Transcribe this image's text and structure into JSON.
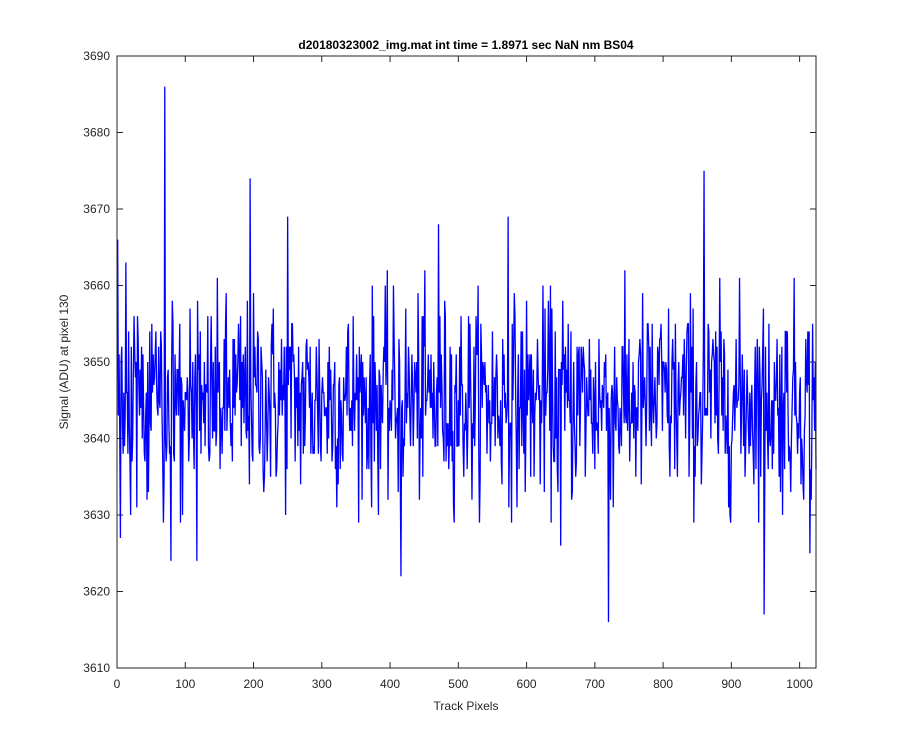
{
  "chart_data": {
    "type": "line",
    "title": "d20180323002_img.mat int time = 1.8971 sec  NaN nm BS04",
    "xlabel": "Track Pixels",
    "ylabel": "Signal (ADU) at pixel 130",
    "xlim": [
      0,
      1024
    ],
    "ylim": [
      3610,
      3690
    ],
    "xticks": [
      0,
      100,
      200,
      300,
      400,
      500,
      600,
      700,
      800,
      900,
      1000
    ],
    "yticks": [
      3610,
      3620,
      3630,
      3640,
      3650,
      3660,
      3670,
      3680,
      3690
    ],
    "grid": false,
    "series": [
      {
        "color": "#0000ff",
        "approximate": true,
        "x_start": 1,
        "x_step": 1,
        "baseline": 3645,
        "spikes": [
          {
            "x": 1,
            "y": 3666
          },
          {
            "x": 5,
            "y": 3627
          },
          {
            "x": 13,
            "y": 3663
          },
          {
            "x": 20,
            "y": 3630
          },
          {
            "x": 70,
            "y": 3686
          },
          {
            "x": 79,
            "y": 3624
          },
          {
            "x": 117,
            "y": 3624
          },
          {
            "x": 195,
            "y": 3674
          },
          {
            "x": 250,
            "y": 3669
          },
          {
            "x": 416,
            "y": 3622
          },
          {
            "x": 471,
            "y": 3668
          },
          {
            "x": 573,
            "y": 3669
          },
          {
            "x": 650,
            "y": 3626
          },
          {
            "x": 720,
            "y": 3616
          },
          {
            "x": 860,
            "y": 3675
          },
          {
            "x": 948,
            "y": 3617
          },
          {
            "x": 1015,
            "y": 3625
          }
        ]
      }
    ]
  }
}
